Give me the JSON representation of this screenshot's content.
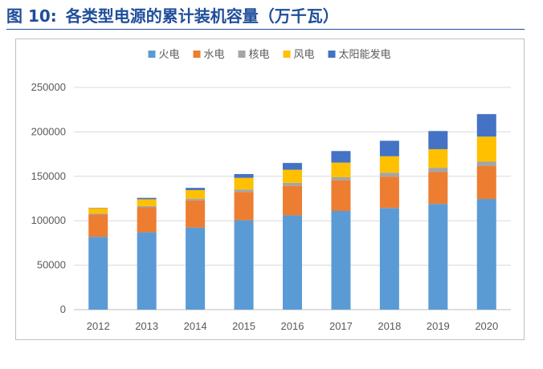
{
  "figure": {
    "label": "图 10:",
    "title": "各类型电源的累计装机容量（万千瓦）"
  },
  "chart_data": {
    "type": "bar",
    "stacked": true,
    "categories": [
      "2012",
      "2013",
      "2014",
      "2015",
      "2016",
      "2017",
      "2018",
      "2019",
      "2020"
    ],
    "series": [
      {
        "name": "火电",
        "color": "#5b9bd5",
        "values": [
          81968,
          87009,
          92363,
          100554,
          106094,
          111009,
          114408,
          118957,
          124517
        ]
      },
      {
        "name": "水电",
        "color": "#ed7d31",
        "values": [
          24947,
          28044,
          30486,
          31954,
          33207,
          34411,
          35259,
          35804,
          37016
        ]
      },
      {
        "name": "核电",
        "color": "#a5a5a5",
        "values": [
          1257,
          1466,
          2008,
          2717,
          3364,
          3582,
          4466,
          4874,
          4989
        ]
      },
      {
        "name": "风电",
        "color": "#ffc000",
        "values": [
          6142,
          7652,
          9657,
          13075,
          14747,
          16400,
          18427,
          20915,
          28153
        ]
      },
      {
        "name": "太阳能发电",
        "color": "#4472c4",
        "values": [
          341,
          1589,
          2486,
          4218,
          7631,
          13042,
          17433,
          20418,
          25343
        ]
      }
    ],
    "ylim": [
      0,
      250000
    ],
    "yticks": [
      "0",
      "50000",
      "100000",
      "150000",
      "200000",
      "250000"
    ],
    "grid": true,
    "legend_position": "top"
  }
}
